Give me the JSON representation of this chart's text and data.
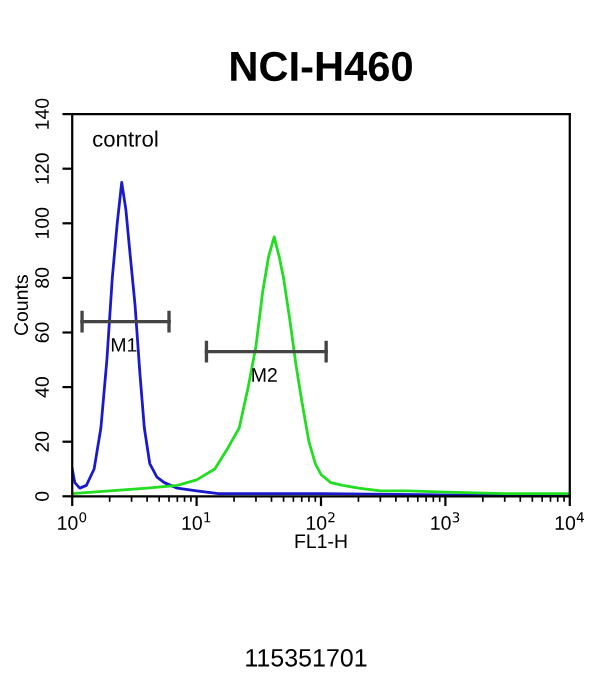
{
  "chart_data": {
    "type": "line",
    "title": "NCI-H460",
    "xlabel": "FL1-H",
    "ylabel": "Counts",
    "log": "x",
    "grid": false,
    "legend": false,
    "marker": "none",
    "line_style": "solid",
    "xlim": [
      1,
      10000
    ],
    "ylim": [
      0,
      140
    ],
    "xticks": [
      {
        "value": 1,
        "label": "10$^{0}$"
      },
      {
        "value": 10,
        "label": "10$^{1}$"
      },
      {
        "value": 100,
        "label": "10$^{2}$"
      },
      {
        "value": 1000,
        "label": "10$^{3}$"
      },
      {
        "value": 10000,
        "label": "10$^{4}$"
      }
    ],
    "yticks": [
      0,
      20,
      40,
      60,
      80,
      100,
      120,
      140
    ],
    "series": [
      {
        "color": "#1a1acc",
        "x": [
          1.0,
          1.05,
          1.15,
          1.3,
          1.5,
          1.7,
          1.9,
          2.1,
          2.3,
          2.5,
          2.7,
          2.9,
          3.2,
          3.5,
          3.8,
          4.2,
          4.8,
          5.5,
          7,
          10,
          15,
          30,
          100,
          1000,
          10000
        ],
        "values": [
          10,
          5,
          3,
          4,
          10,
          25,
          50,
          80,
          100,
          115,
          105,
          90,
          70,
          45,
          25,
          12,
          7,
          5,
          3,
          2,
          1,
          1,
          1,
          0.5,
          0.5
        ]
      },
      {
        "color": "#22dd22",
        "x": [
          1,
          2,
          4,
          7,
          10,
          14,
          18,
          22,
          26,
          30,
          34,
          38,
          42,
          46,
          50,
          56,
          63,
          70,
          80,
          90,
          100,
          120,
          150,
          200,
          300,
          500,
          1000,
          3000,
          10000
        ],
        "values": [
          1,
          2,
          3,
          4,
          6,
          10,
          18,
          25,
          40,
          55,
          75,
          88,
          95,
          88,
          80,
          65,
          48,
          35,
          20,
          12,
          8,
          5,
          4,
          3,
          2,
          2,
          1.5,
          1,
          1
        ]
      },
      {
        "color": "#444444",
        "x": [
          1.2,
          6
        ],
        "values": [
          64,
          64
        ],
        "errors": [
          4,
          4
        ]
      },
      {
        "color": "#444444",
        "x": [
          12,
          110
        ],
        "values": [
          53,
          53
        ],
        "errors": [
          4,
          4
        ]
      }
    ],
    "annotations": [
      {
        "text": "M1",
        "x": 2.6,
        "y": 64
      },
      {
        "text": "M2",
        "x": 35,
        "y": 53
      },
      "control",
      "115351701"
    ]
  }
}
